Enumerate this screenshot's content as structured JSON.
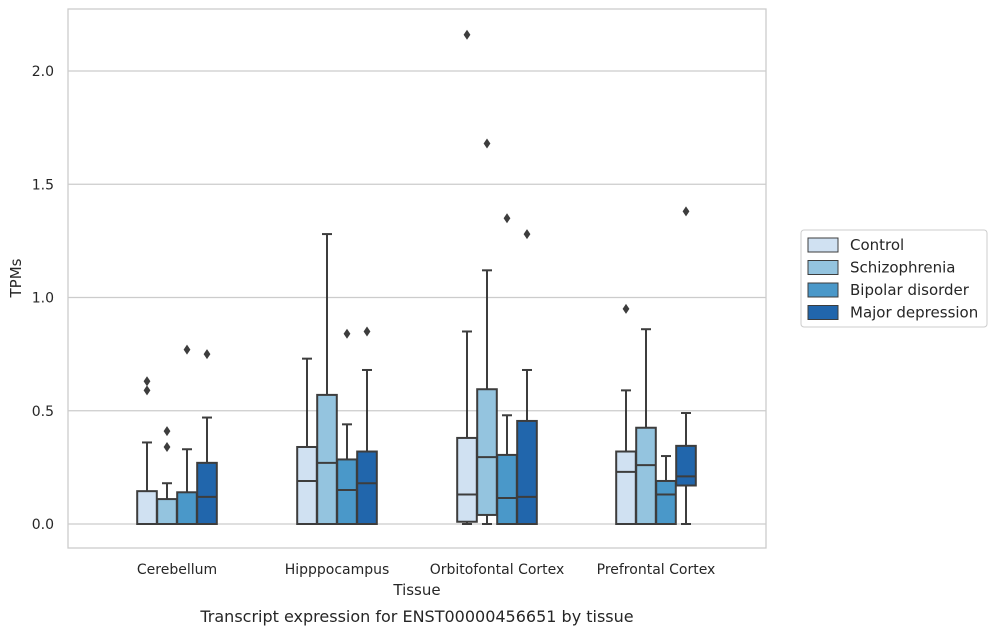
{
  "caption": "Transcript expression for ENST00000456651 by tissue",
  "chart_data": {
    "type": "boxplot",
    "xlabel": "Tissue",
    "ylabel": "TPMs",
    "ylim": [
      -0.1,
      2.28
    ],
    "yticks": [
      0.0,
      0.5,
      1.0,
      1.5,
      2.0
    ],
    "ytick_labels": [
      "0.0",
      "0.5",
      "1.0",
      "1.5",
      "2.0"
    ],
    "grid": "horizontal",
    "legend_position": "right",
    "categories": [
      "Cerebellum",
      "Hipppocampus",
      "Orbitofontal Cortex",
      "Prefrontal Cortex"
    ],
    "series": [
      {
        "name": "Control",
        "color": "#d0e1f2",
        "boxes": [
          {
            "whislo": 0.0,
            "q1": 0.0,
            "med": 0.0,
            "q3": 0.145,
            "whishi": 0.36,
            "fliers": [
              0.59,
              0.63
            ]
          },
          {
            "whislo": 0.0,
            "q1": 0.0,
            "med": 0.19,
            "q3": 0.34,
            "whishi": 0.73,
            "fliers": []
          },
          {
            "whislo": 0.0,
            "q1": 0.01,
            "med": 0.13,
            "q3": 0.38,
            "whishi": 0.85,
            "fliers": [
              2.16
            ]
          },
          {
            "whislo": 0.0,
            "q1": 0.0,
            "med": 0.23,
            "q3": 0.32,
            "whishi": 0.59,
            "fliers": [
              0.95
            ]
          }
        ]
      },
      {
        "name": "Schizophrenia",
        "color": "#94c4df",
        "boxes": [
          {
            "whislo": 0.0,
            "q1": 0.0,
            "med": 0.0,
            "q3": 0.11,
            "whishi": 0.18,
            "fliers": [
              0.34,
              0.41
            ]
          },
          {
            "whislo": 0.0,
            "q1": 0.0,
            "med": 0.27,
            "q3": 0.57,
            "whishi": 1.28,
            "fliers": []
          },
          {
            "whislo": 0.0,
            "q1": 0.04,
            "med": 0.295,
            "q3": 0.595,
            "whishi": 1.12,
            "fliers": [
              1.68
            ]
          },
          {
            "whislo": 0.0,
            "q1": 0.0,
            "med": 0.26,
            "q3": 0.425,
            "whishi": 0.86,
            "fliers": []
          }
        ]
      },
      {
        "name": "Bipolar disorder",
        "color": "#4a98c9",
        "boxes": [
          {
            "whislo": 0.0,
            "q1": 0.0,
            "med": 0.0,
            "q3": 0.14,
            "whishi": 0.33,
            "fliers": [
              0.77
            ]
          },
          {
            "whislo": 0.0,
            "q1": 0.0,
            "med": 0.15,
            "q3": 0.285,
            "whishi": 0.44,
            "fliers": [
              0.84
            ]
          },
          {
            "whislo": 0.0,
            "q1": 0.0,
            "med": 0.115,
            "q3": 0.305,
            "whishi": 0.48,
            "fliers": [
              1.35
            ]
          },
          {
            "whislo": 0.0,
            "q1": 0.0,
            "med": 0.13,
            "q3": 0.19,
            "whishi": 0.3,
            "fliers": []
          }
        ]
      },
      {
        "name": "Major depression",
        "color": "#2166ac",
        "boxes": [
          {
            "whislo": 0.0,
            "q1": 0.0,
            "med": 0.12,
            "q3": 0.27,
            "whishi": 0.47,
            "fliers": [
              0.75
            ]
          },
          {
            "whislo": 0.0,
            "q1": 0.0,
            "med": 0.18,
            "q3": 0.32,
            "whishi": 0.68,
            "fliers": [
              0.85
            ]
          },
          {
            "whislo": 0.0,
            "q1": 0.0,
            "med": 0.12,
            "q3": 0.455,
            "whishi": 0.68,
            "fliers": [
              1.28
            ]
          },
          {
            "whislo": 0.0,
            "q1": 0.17,
            "med": 0.21,
            "q3": 0.345,
            "whishi": 0.49,
            "fliers": [
              1.38
            ]
          }
        ]
      }
    ]
  }
}
